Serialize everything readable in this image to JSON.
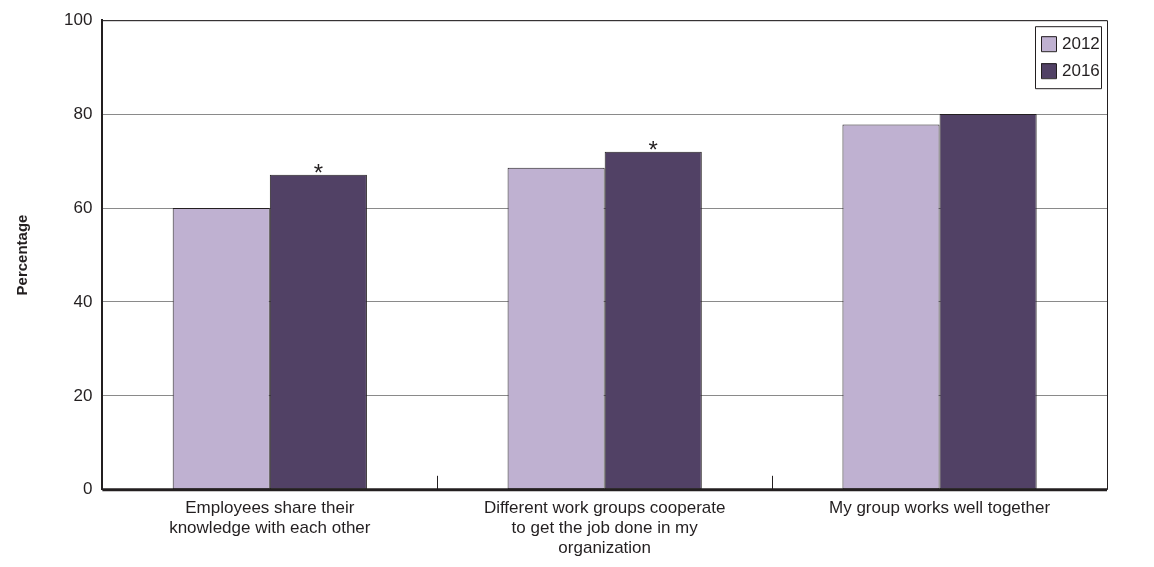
{
  "chart_data": {
    "type": "bar",
    "ylabel": "Percentage",
    "categories": [
      "Employees share their knowledge with each other",
      "Different work groups cooperate to get the job done in my organization",
      "My group works well together"
    ],
    "series": [
      {
        "name": "2012",
        "color": "#bfb1d1",
        "values": [
          60,
          68.6,
          77.8
        ]
      },
      {
        "name": "2016",
        "color": "#514165",
        "values": [
          67.1,
          72,
          80
        ],
        "value_labels": [
          "*",
          "*",
          null
        ]
      }
    ],
    "ylim": [
      0,
      100
    ],
    "yticks": [
      0,
      20,
      40,
      60,
      80,
      100
    ],
    "grid": "y",
    "legend": "top right"
  }
}
